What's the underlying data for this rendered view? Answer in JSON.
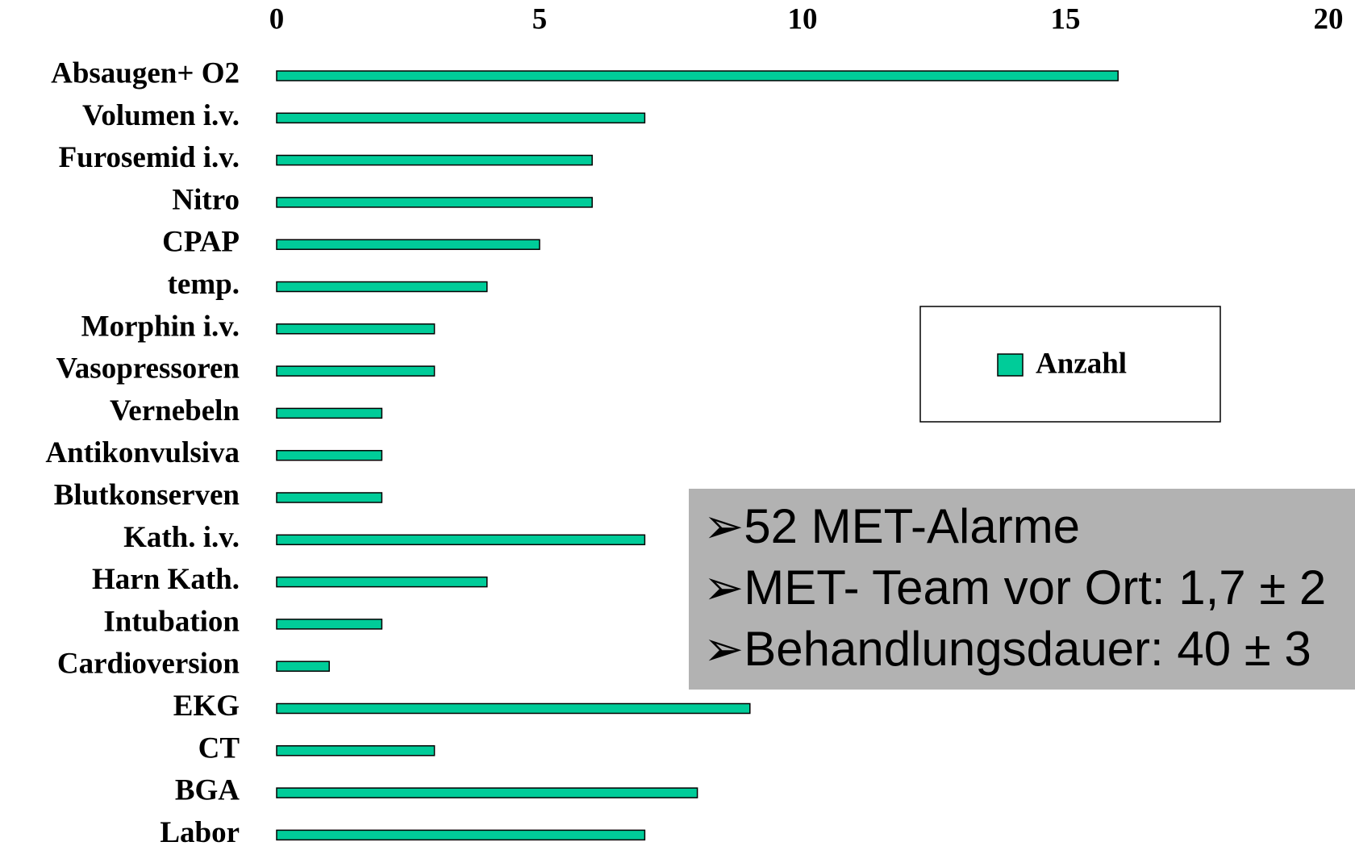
{
  "chart_data": {
    "type": "bar",
    "orientation": "horizontal",
    "categories": [
      "Absaugen+ O2",
      "Volumen i.v.",
      "Furosemid i.v.",
      "Nitro",
      "CPAP",
      "temp.",
      "Morphin i.v.",
      "Vasopressoren",
      "Vernebeln",
      "Antikonvulsiva",
      "Blutkonserven",
      "Kath. i.v.",
      "Harn Kath.",
      "Intubation",
      "Cardioversion",
      "EKG",
      "CT",
      "BGA",
      "Labor"
    ],
    "series": [
      {
        "name": "Anzahl",
        "color": "#00cc99",
        "values": [
          16,
          7,
          6,
          6,
          5,
          4,
          3,
          3,
          2,
          2,
          2,
          7,
          4,
          2,
          1,
          9,
          3,
          8,
          7
        ]
      }
    ],
    "xlim": [
      0,
      20
    ],
    "xticks": [
      0,
      5,
      10,
      15,
      20
    ],
    "grid": false,
    "legend": "right",
    "annotations": [
      "➢52 MET-Alarme",
      "➢MET- Team vor Ort: 1,7 ± 2",
      "➢Behandlungsdauer: 40 ± 3"
    ]
  }
}
